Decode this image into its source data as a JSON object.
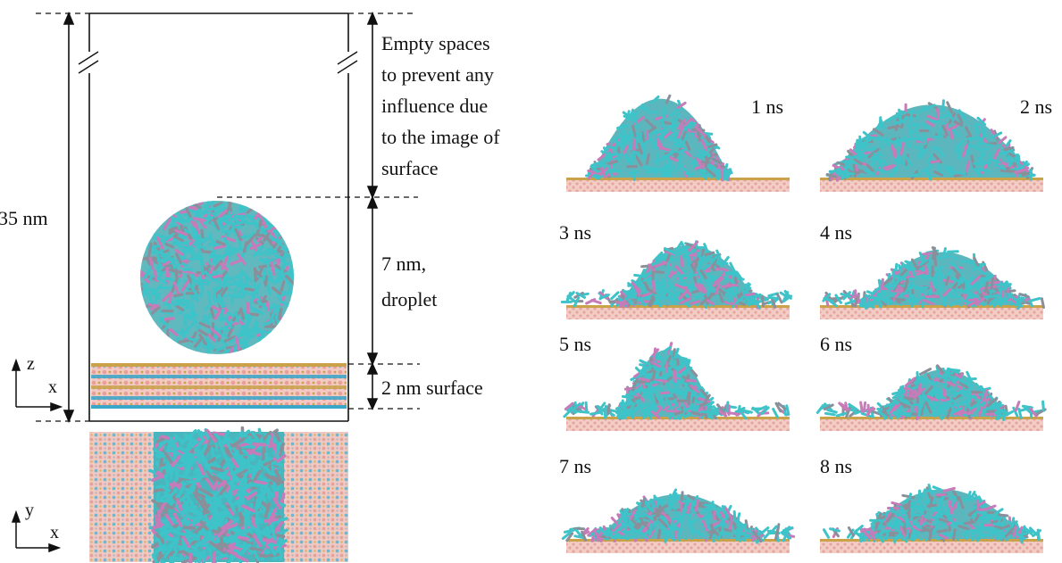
{
  "annotations": {
    "total_height": "35 nm",
    "empty_space_lines": [
      "Empty spaces",
      "to prevent any",
      "influence due",
      "to the image of",
      "surface"
    ],
    "droplet_lines": [
      "7 nm,",
      "droplet"
    ],
    "surface": "2 nm surface"
  },
  "axes": {
    "side_view": {
      "vertical": "z",
      "horizontal": "x"
    },
    "top_view": {
      "vertical": "y",
      "horizontal": "x"
    }
  },
  "snapshots": [
    {
      "label": "1 ns",
      "height": 0.92,
      "width": 0.62,
      "offset": -0.08
    },
    {
      "label": "2 ns",
      "height": 0.85,
      "width": 0.9,
      "offset": 0.0
    },
    {
      "label": "3 ns",
      "height": 0.7,
      "width": 0.62,
      "offset": 0.05
    },
    {
      "label": "4 ns",
      "height": 0.62,
      "width": 0.7,
      "offset": 0.05
    },
    {
      "label": "5 ns",
      "height": 0.78,
      "width": 0.42,
      "offset": -0.05
    },
    {
      "label": "6 ns",
      "height": 0.55,
      "width": 0.55,
      "offset": 0.05
    },
    {
      "label": "7 ns",
      "height": 0.52,
      "width": 0.72,
      "offset": 0.0
    },
    {
      "label": "8 ns",
      "height": 0.58,
      "width": 0.74,
      "offset": 0.05
    }
  ],
  "colors": {
    "molecule_cyan": "#3ec3c9",
    "molecule_pink": "#c77bb8",
    "molecule_grey": "#8a8f9a",
    "surface_pink": "#e9a6a1",
    "surface_blue": "#3aa6c8",
    "surface_gold": "#c9a24a"
  }
}
